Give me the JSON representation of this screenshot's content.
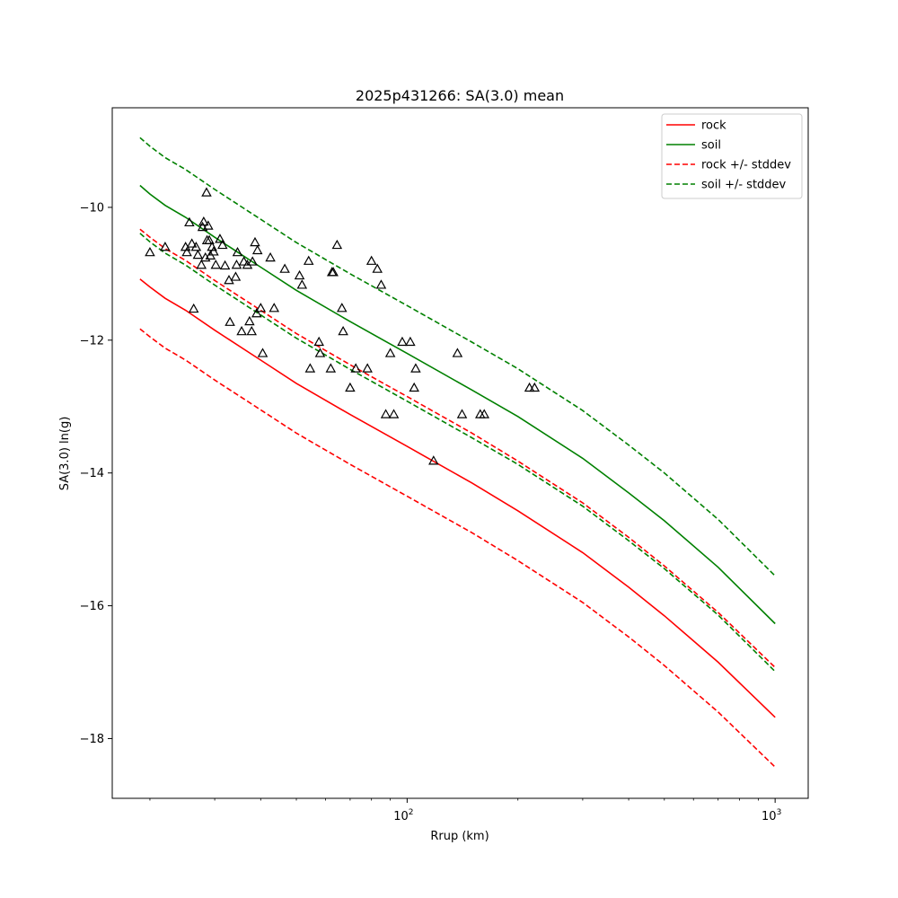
{
  "chart_data": {
    "type": "line",
    "title": "2025p431266: SA(3.0) mean",
    "xlabel": "Rrup (km)",
    "ylabel": "SA(3.0) ln(g)",
    "xscale": "log",
    "xlim": [
      15.8,
      1230
    ],
    "ylim": [
      -18.9,
      -8.5
    ],
    "grid": false,
    "legend_position": "top-right",
    "x_ticks": [
      {
        "value": 100,
        "label": "10",
        "sup": "2"
      },
      {
        "value": 1000,
        "label": "10",
        "sup": "3"
      }
    ],
    "y_ticks": [
      {
        "value": -10,
        "label": "−10"
      },
      {
        "value": -12,
        "label": "−12"
      },
      {
        "value": -14,
        "label": "−14"
      },
      {
        "value": -16,
        "label": "−16"
      },
      {
        "value": -18,
        "label": "−18"
      }
    ],
    "x": [
      18.8,
      20,
      22,
      25,
      30,
      40,
      50,
      70,
      100,
      150,
      200,
      300,
      400,
      500,
      700,
      1000
    ],
    "series": [
      {
        "name": "rock",
        "style": "solid",
        "color": "#ff0000",
        "legend": true,
        "values": [
          -11.08,
          -11.2,
          -11.37,
          -11.55,
          -11.85,
          -12.3,
          -12.65,
          -13.12,
          -13.6,
          -14.15,
          -14.57,
          -15.2,
          -15.72,
          -16.15,
          -16.85,
          -17.68
        ]
      },
      {
        "name": "soil",
        "style": "solid",
        "color": "#008000",
        "legend": true,
        "values": [
          -9.67,
          -9.8,
          -9.97,
          -10.15,
          -10.45,
          -10.9,
          -11.25,
          -11.72,
          -12.2,
          -12.75,
          -13.15,
          -13.78,
          -14.3,
          -14.72,
          -15.42,
          -16.27
        ]
      },
      {
        "name": "rock +/- stddev",
        "style": "dashed",
        "color": "#ff0000",
        "legend": true,
        "values": [
          -10.33,
          -10.45,
          -10.62,
          -10.8,
          -11.1,
          -11.55,
          -11.9,
          -12.37,
          -12.85,
          -13.4,
          -13.82,
          -14.45,
          -14.97,
          -15.4,
          -16.1,
          -16.93
        ]
      },
      {
        "name": "",
        "style": "dashed",
        "color": "#ff0000",
        "legend": false,
        "values": [
          -11.83,
          -11.95,
          -12.12,
          -12.3,
          -12.6,
          -13.05,
          -13.4,
          -13.87,
          -14.35,
          -14.9,
          -15.32,
          -15.95,
          -16.47,
          -16.9,
          -17.6,
          -18.43
        ]
      },
      {
        "name": "soil +/- stddev",
        "style": "dashed",
        "color": "#008000",
        "legend": true,
        "values": [
          -8.95,
          -9.08,
          -9.25,
          -9.43,
          -9.73,
          -10.18,
          -10.53,
          -11.0,
          -11.48,
          -12.03,
          -12.43,
          -13.06,
          -13.58,
          -14.0,
          -14.7,
          -15.55
        ]
      },
      {
        "name": "",
        "style": "dashed",
        "color": "#008000",
        "legend": false,
        "values": [
          -10.39,
          -10.52,
          -10.69,
          -10.87,
          -11.17,
          -11.62,
          -11.97,
          -12.44,
          -12.92,
          -13.47,
          -13.87,
          -14.5,
          -15.02,
          -15.44,
          -16.14,
          -16.99
        ]
      }
    ],
    "observations": {
      "marker": "triangle",
      "color": "#000000",
      "points": [
        [
          20.0,
          -10.68
        ],
        [
          22.0,
          -10.6
        ],
        [
          25.0,
          -10.6
        ],
        [
          25.2,
          -10.68
        ],
        [
          25.6,
          -10.23
        ],
        [
          26.0,
          -10.55
        ],
        [
          26.3,
          -11.53
        ],
        [
          26.7,
          -10.6
        ],
        [
          27.0,
          -10.72
        ],
        [
          27.6,
          -10.87
        ],
        [
          27.8,
          -10.3
        ],
        [
          28.0,
          -10.22
        ],
        [
          28.3,
          -10.76
        ],
        [
          28.5,
          -9.78
        ],
        [
          28.6,
          -10.5
        ],
        [
          28.8,
          -10.28
        ],
        [
          29.0,
          -10.5
        ],
        [
          29.2,
          -10.73
        ],
        [
          29.5,
          -10.6
        ],
        [
          29.8,
          -10.67
        ],
        [
          30.2,
          -10.87
        ],
        [
          31.0,
          -10.48
        ],
        [
          31.5,
          -10.57
        ],
        [
          32.0,
          -10.88
        ],
        [
          32.8,
          -11.1
        ],
        [
          33.0,
          -11.73
        ],
        [
          34.2,
          -11.05
        ],
        [
          34.4,
          -10.87
        ],
        [
          34.6,
          -10.68
        ],
        [
          35.5,
          -11.87
        ],
        [
          36.0,
          -10.82
        ],
        [
          36.8,
          -10.87
        ],
        [
          37.3,
          -11.72
        ],
        [
          37.8,
          -11.87
        ],
        [
          38.0,
          -10.82
        ],
        [
          38.6,
          -10.53
        ],
        [
          39.0,
          -11.6
        ],
        [
          39.2,
          -10.65
        ],
        [
          40.0,
          -11.52
        ],
        [
          40.5,
          -12.2
        ],
        [
          42.5,
          -10.76
        ],
        [
          43.5,
          -11.52
        ],
        [
          46.5,
          -10.93
        ],
        [
          51.0,
          -11.03
        ],
        [
          51.8,
          -11.17
        ],
        [
          54.0,
          -10.81
        ],
        [
          54.5,
          -12.43
        ],
        [
          57.6,
          -12.03
        ],
        [
          58.0,
          -12.2
        ],
        [
          62.0,
          -12.43
        ],
        [
          62.5,
          -10.98
        ],
        [
          63.0,
          -10.98
        ],
        [
          64.5,
          -10.57
        ],
        [
          66.5,
          -11.52
        ],
        [
          67.0,
          -11.87
        ],
        [
          70.0,
          -12.72
        ],
        [
          72.5,
          -12.43
        ],
        [
          78.0,
          -12.43
        ],
        [
          80.0,
          -10.81
        ],
        [
          83.0,
          -10.93
        ],
        [
          85.0,
          -11.17
        ],
        [
          87.5,
          -13.12
        ],
        [
          90.0,
          -12.2
        ],
        [
          92.0,
          -13.12
        ],
        [
          97.0,
          -12.03
        ],
        [
          102.0,
          -12.03
        ],
        [
          104.5,
          -12.72
        ],
        [
          105.5,
          -12.43
        ],
        [
          118.0,
          -13.82
        ],
        [
          137.0,
          -12.2
        ],
        [
          141.0,
          -13.12
        ],
        [
          158.0,
          -13.12
        ],
        [
          162.0,
          -13.12
        ],
        [
          215.0,
          -12.72
        ],
        [
          222.0,
          -12.72
        ]
      ]
    }
  }
}
